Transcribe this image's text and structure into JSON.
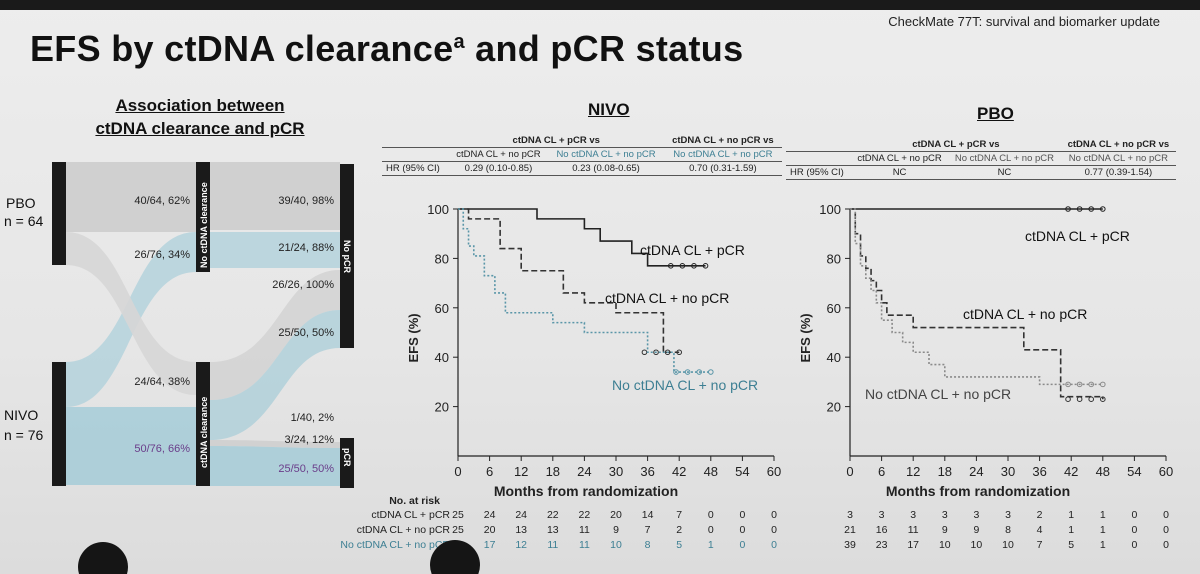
{
  "header_tag": "CheckMate 77T: survival and biomarker update",
  "title_main": "EFS by ctDNA clearance",
  "title_sup": "a",
  "title_rest": " and pCR status",
  "sankey": {
    "heading_line1": "Association between",
    "heading_line2": "ctDNA clearance and pCR",
    "arm_pbo": "PBO",
    "arm_pbo_n": "n = 64",
    "arm_nivo": "NIVO",
    "arm_nivo_n": "n = 76",
    "mid_top_label": "No ctDNA clearance",
    "mid_bottom_label": "ctDNA clearance",
    "right_top_label": "No pCR",
    "right_bottom_label": "pCR",
    "left_labels": [
      "40/64, 62%",
      "26/76, 34%",
      "24/64, 38%",
      "50/76, 66%"
    ],
    "right_labels": [
      "39/40, 98%",
      "21/24, 88%",
      "26/26, 100%",
      "25/50, 50%",
      "1/40, 2%",
      "3/24, 12%",
      "25/50, 50%"
    ],
    "accent_gray": "#c9c9c9",
    "accent_blue": "#a9cdd8",
    "accent_purple": "#6a3d8a"
  },
  "chart_data": [
    {
      "type": "line",
      "panel": "NIVO",
      "hr_table": {
        "group_headers": [
          "ctDNA CL + pCR vs",
          "ctDNA CL + no pCR vs"
        ],
        "comparisons": [
          "ctDNA CL + no pCR",
          "No ctDNA CL + no pCR",
          "No ctDNA CL + no pCR"
        ],
        "row_label": "HR (95% CI)",
        "values": [
          "0.29 (0.10-0.85)",
          "0.23 (0.08-0.65)",
          "0.70 (0.31-1.59)"
        ]
      },
      "xlabel": "Months from randomization",
      "ylabel": "EFS (%)",
      "xlim": [
        0,
        60
      ],
      "ylim": [
        0,
        100
      ],
      "xticks": [
        0,
        6,
        12,
        18,
        24,
        30,
        36,
        42,
        48,
        54,
        60
      ],
      "yticks": [
        20,
        40,
        60,
        80,
        100
      ],
      "series": [
        {
          "name": "ctDNA CL + pCR",
          "style": "solid",
          "color": "#222222",
          "x": [
            0,
            10,
            15,
            24,
            27,
            33,
            36,
            47
          ],
          "y": [
            100,
            100,
            96,
            92,
            87,
            82,
            77,
            77
          ]
        },
        {
          "name": "ctDNA CL + no pCR",
          "style": "dashed",
          "color": "#333333",
          "x": [
            0,
            2,
            5,
            8,
            12,
            18,
            20,
            24,
            30,
            36,
            39,
            42
          ],
          "y": [
            100,
            96,
            96,
            84,
            75,
            75,
            66,
            62,
            58,
            58,
            42,
            42
          ]
        },
        {
          "name": "No ctDNA CL + no pCR",
          "style": "dotted",
          "color": "#5a96a8",
          "x": [
            0,
            1,
            2,
            3,
            5,
            7,
            9,
            12,
            18,
            24,
            30,
            36,
            41,
            42,
            48
          ],
          "y": [
            100,
            92,
            85,
            81,
            73,
            66,
            58,
            58,
            54,
            50,
            50,
            42,
            34,
            34,
            34
          ]
        }
      ],
      "number_at_risk": {
        "title": "No. at risk",
        "rows": [
          {
            "label": "ctDNA CL + pCR",
            "values": [
              25,
              24,
              24,
              22,
              22,
              20,
              14,
              7,
              0,
              0,
              0
            ]
          },
          {
            "label": "ctDNA CL + no pCR",
            "values": [
              25,
              20,
              13,
              13,
              11,
              9,
              7,
              2,
              0,
              0,
              0
            ]
          },
          {
            "label": "No ctDNA CL + no pCR",
            "values": [
              26,
              17,
              12,
              11,
              11,
              10,
              8,
              5,
              1,
              0,
              0
            ]
          }
        ]
      }
    },
    {
      "type": "line",
      "panel": "PBO",
      "hr_table": {
        "group_headers": [
          "ctDNA CL + pCR vs",
          "ctDNA CL + no pCR vs"
        ],
        "comparisons": [
          "ctDNA CL + no pCR",
          "No ctDNA CL + no pCR",
          "No ctDNA CL + no pCR"
        ],
        "row_label": "HR (95% CI)",
        "values": [
          "NC",
          "NC",
          "0.77 (0.39-1.54)"
        ]
      },
      "xlabel": "Months from randomization",
      "ylabel": "EFS (%)",
      "xlim": [
        0,
        60
      ],
      "ylim": [
        0,
        100
      ],
      "xticks": [
        0,
        6,
        12,
        18,
        24,
        30,
        36,
        42,
        48,
        54,
        60
      ],
      "yticks": [
        20,
        40,
        60,
        80,
        100
      ],
      "series": [
        {
          "name": "ctDNA CL + pCR",
          "style": "solid",
          "color": "#222222",
          "x": [
            0,
            48
          ],
          "y": [
            100,
            100
          ]
        },
        {
          "name": "ctDNA CL + no pCR",
          "style": "dashed",
          "color": "#333333",
          "x": [
            0,
            1,
            2,
            3,
            4,
            5,
            6,
            7,
            12,
            30,
            33,
            38,
            40,
            48
          ],
          "y": [
            100,
            90,
            81,
            76,
            71,
            67,
            62,
            57,
            52,
            52,
            43,
            43,
            24,
            23
          ]
        },
        {
          "name": "No ctDNA CL + no pCR",
          "style": "dotted",
          "color": "#8a8a8a",
          "x": [
            0,
            1,
            2,
            3,
            4,
            5,
            6,
            8,
            10,
            12,
            15,
            18,
            24,
            30,
            36,
            48
          ],
          "y": [
            100,
            86,
            77,
            72,
            67,
            62,
            55,
            50,
            46,
            42,
            37,
            32,
            32,
            32,
            29,
            29
          ]
        }
      ],
      "number_at_risk": {
        "rows": [
          {
            "label": "ctDNA CL + pCR",
            "values": [
              3,
              3,
              3,
              3,
              3,
              3,
              2,
              1,
              1,
              0,
              0
            ]
          },
          {
            "label": "ctDNA CL + no pCR",
            "values": [
              21,
              16,
              11,
              9,
              9,
              8,
              4,
              1,
              1,
              0,
              0
            ]
          },
          {
            "label": "No ctDNA CL + no pCR",
            "values": [
              39,
              23,
              17,
              10,
              10,
              10,
              7,
              5,
              1,
              0,
              0
            ]
          }
        ]
      }
    }
  ]
}
